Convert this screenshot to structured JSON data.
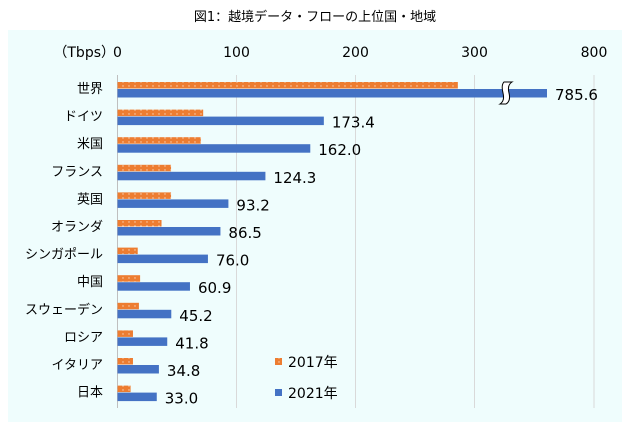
{
  "title": "図1：越境データ・フローの上位国・地域",
  "chart_data": {
    "type": "bar",
    "orientation": "horizontal",
    "title": "図1：越境データ・フローの上位国・地域",
    "unit_label": "（Tbps）",
    "x_ticks": [
      "0",
      "100",
      "200",
      "300",
      "800"
    ],
    "axis_break": [
      300,
      800
    ],
    "xlim": [
      0,
      800
    ],
    "grid": true,
    "legend_position": "bottom-right",
    "categories": [
      "世界",
      "ドイツ",
      "米国",
      "フランス",
      "英国",
      "オランダ",
      "シンガポール",
      "中国",
      "スウェーデン",
      "ロシア",
      "イタリア",
      "日本"
    ],
    "series": [
      {
        "name": "2017年",
        "color": "#ED7D31",
        "pattern": "dotted",
        "values": [
          286,
          72,
          70,
          45,
          45,
          37,
          17,
          19,
          18,
          13,
          13,
          11
        ]
      },
      {
        "name": "2021年",
        "color": "#4472C4",
        "values": [
          785.6,
          173.4,
          162.0,
          124.3,
          93.2,
          86.5,
          76.0,
          60.9,
          45.2,
          41.8,
          34.8,
          33.0
        ],
        "data_labels": [
          "785.6",
          "173.4",
          "162.0",
          "124.3",
          "93.2",
          "86.5",
          "76.0",
          "60.9",
          "45.2",
          "41.8",
          "34.8",
          "33.0"
        ]
      }
    ]
  }
}
